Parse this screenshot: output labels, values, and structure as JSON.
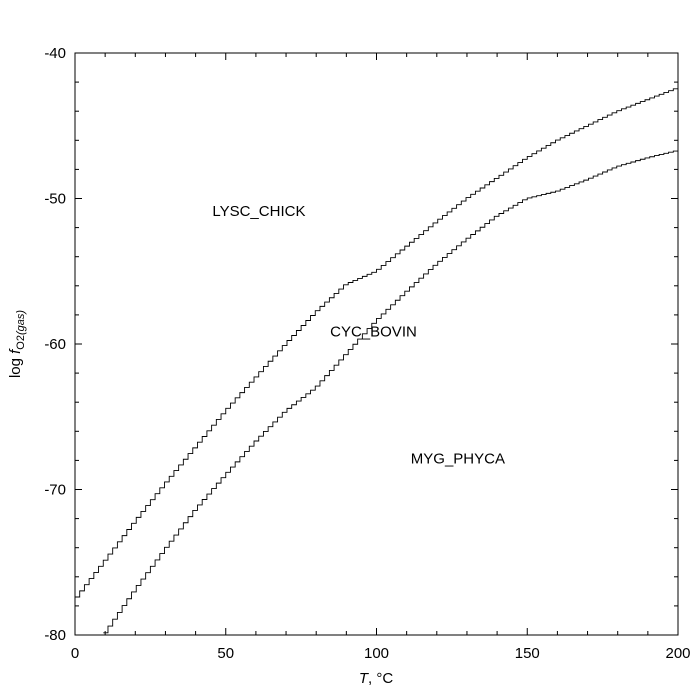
{
  "chart_data": {
    "type": "line",
    "title": "",
    "xlabel": {
      "italic": "T",
      "rest": ", °C"
    },
    "ylabel": {
      "prefix": "log ",
      "italic": "f",
      "sub": "O2(gas)",
      "sub_plain": "O2",
      "sub_italic": "(gas)"
    },
    "xlim": [
      0,
      200
    ],
    "ylim": [
      -80,
      -40
    ],
    "x_ticks": [
      0,
      50,
      100,
      150,
      200
    ],
    "y_ticks": [
      -80,
      -70,
      -60,
      -50,
      -40
    ],
    "x_tick_labels": [
      "0",
      "50",
      "100",
      "150",
      "200"
    ],
    "y_tick_labels": [
      "-80",
      "-70",
      "-60",
      "-50",
      "-40"
    ],
    "grid": false,
    "line_style": "step",
    "step_count": 128,
    "series": [
      {
        "x": [
          0,
          10,
          20,
          30,
          40,
          50,
          60,
          70,
          80,
          90,
          100,
          110,
          120,
          130,
          140,
          150,
          160,
          170,
          180,
          190,
          200
        ],
        "y": [
          -77.6,
          -74.9,
          -72.2,
          -69.6,
          -67.1,
          -64.6,
          -62.3,
          -60.0,
          -57.8,
          -55.9,
          -55.0,
          -53.3,
          -51.6,
          -50.0,
          -48.6,
          -47.2,
          -46.0,
          -45.0,
          -44.0,
          -43.2,
          -42.4
        ]
      },
      {
        "x": [
          9,
          10,
          20,
          30,
          40,
          50,
          60,
          70,
          80,
          90,
          100,
          110,
          120,
          130,
          140,
          150,
          160,
          170,
          180,
          190,
          200
        ],
        "y": [
          -80.0,
          -79.9,
          -76.9,
          -74.1,
          -71.4,
          -69.0,
          -66.7,
          -64.6,
          -63.0,
          -60.7,
          -58.4,
          -56.4,
          -54.5,
          -52.8,
          -51.2,
          -50.0,
          -49.5,
          -48.7,
          -47.8,
          -47.2,
          -46.7
        ]
      }
    ],
    "annotations": [
      {
        "text": "LYSC_CHICK",
        "x": 61,
        "y": -51.2
      },
      {
        "text": "CYC_BOVIN",
        "x": 99,
        "y": -59.5
      },
      {
        "text": "MYG_PHYCA",
        "x": 127,
        "y": -68.2
      }
    ]
  }
}
